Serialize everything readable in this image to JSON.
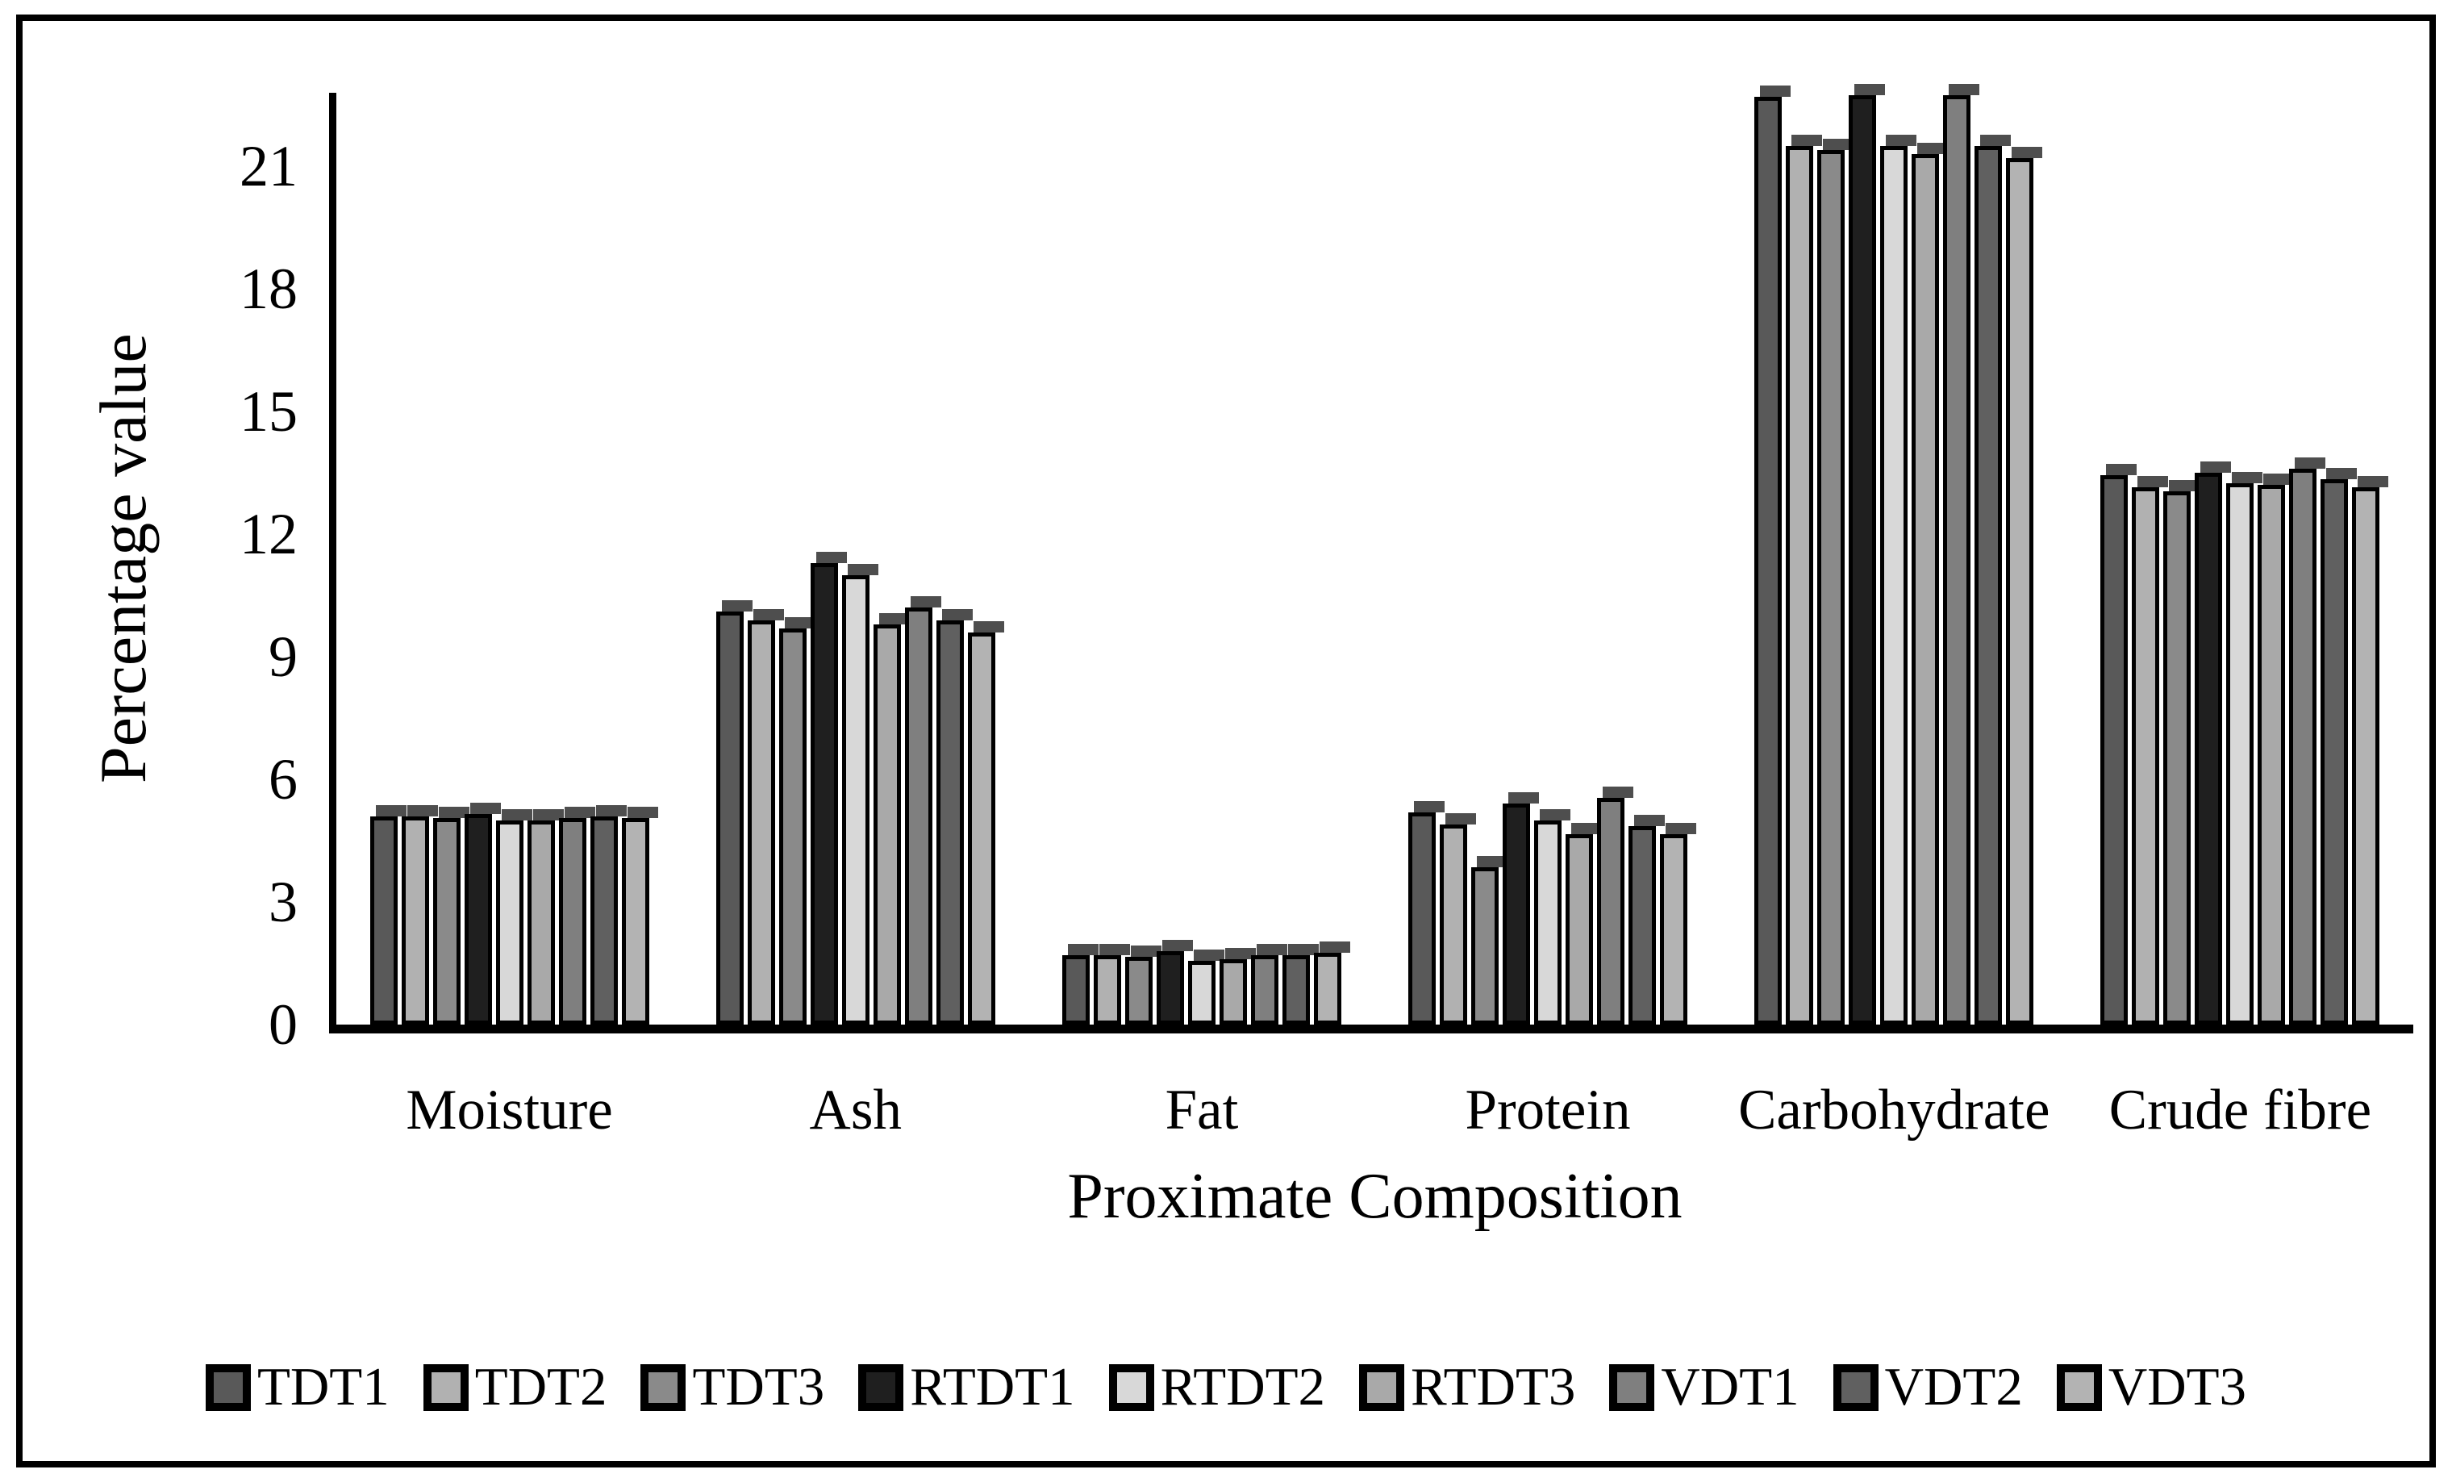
{
  "figure": {
    "y_axis_title": "Percentage value",
    "x_axis_title": "Proximate Composition"
  },
  "chart_data": {
    "type": "bar",
    "title": "",
    "xlabel": "Proximate Composition",
    "ylabel": "Percentage value",
    "categories": [
      "Moisture",
      "Ash",
      "Fat",
      "Protein",
      "Carbohydrate",
      "Crude fibre"
    ],
    "series": [
      {
        "name": "TDT1",
        "color": "#595959",
        "values": [
          5.1,
          10.1,
          1.7,
          5.2,
          22.7,
          13.45
        ]
      },
      {
        "name": "TDT2",
        "color": "#b1b1b1",
        "values": [
          5.1,
          9.9,
          1.7,
          4.9,
          21.5,
          13.15
        ]
      },
      {
        "name": "TDT3",
        "color": "#8a8a8a",
        "values": [
          5.05,
          9.7,
          1.65,
          3.85,
          21.4,
          13.05
        ]
      },
      {
        "name": "RTDT1",
        "color": "#1f1f1f",
        "values": [
          5.15,
          11.3,
          1.8,
          5.4,
          22.75,
          13.5
        ]
      },
      {
        "name": "RTDT2",
        "color": "#d8d8d8",
        "values": [
          5.0,
          11.0,
          1.55,
          5.0,
          21.5,
          13.25
        ]
      },
      {
        "name": "RTDT3",
        "color": "#a9a9a9",
        "values": [
          5.0,
          9.8,
          1.6,
          4.65,
          21.3,
          13.2
        ]
      },
      {
        "name": "VDT1",
        "color": "#7f7f7f",
        "values": [
          5.05,
          10.2,
          1.7,
          5.55,
          22.75,
          13.6
        ]
      },
      {
        "name": "VDT2",
        "color": "#606060",
        "values": [
          5.1,
          9.9,
          1.7,
          4.85,
          21.5,
          13.35
        ]
      },
      {
        "name": "VDT3",
        "color": "#b3b3b3",
        "values": [
          5.05,
          9.6,
          1.75,
          4.65,
          21.2,
          13.15
        ]
      }
    ],
    "ylim": [
      0,
      22.8
    ],
    "yticks": [
      0,
      3,
      6,
      9,
      12,
      15,
      18,
      21
    ],
    "grid": false,
    "legend_position": "bottom",
    "bar_border_color": "#000000",
    "bar_cap_color": "#4e4e4e",
    "frame_color": "#000000",
    "background_color": "#ffffff"
  }
}
